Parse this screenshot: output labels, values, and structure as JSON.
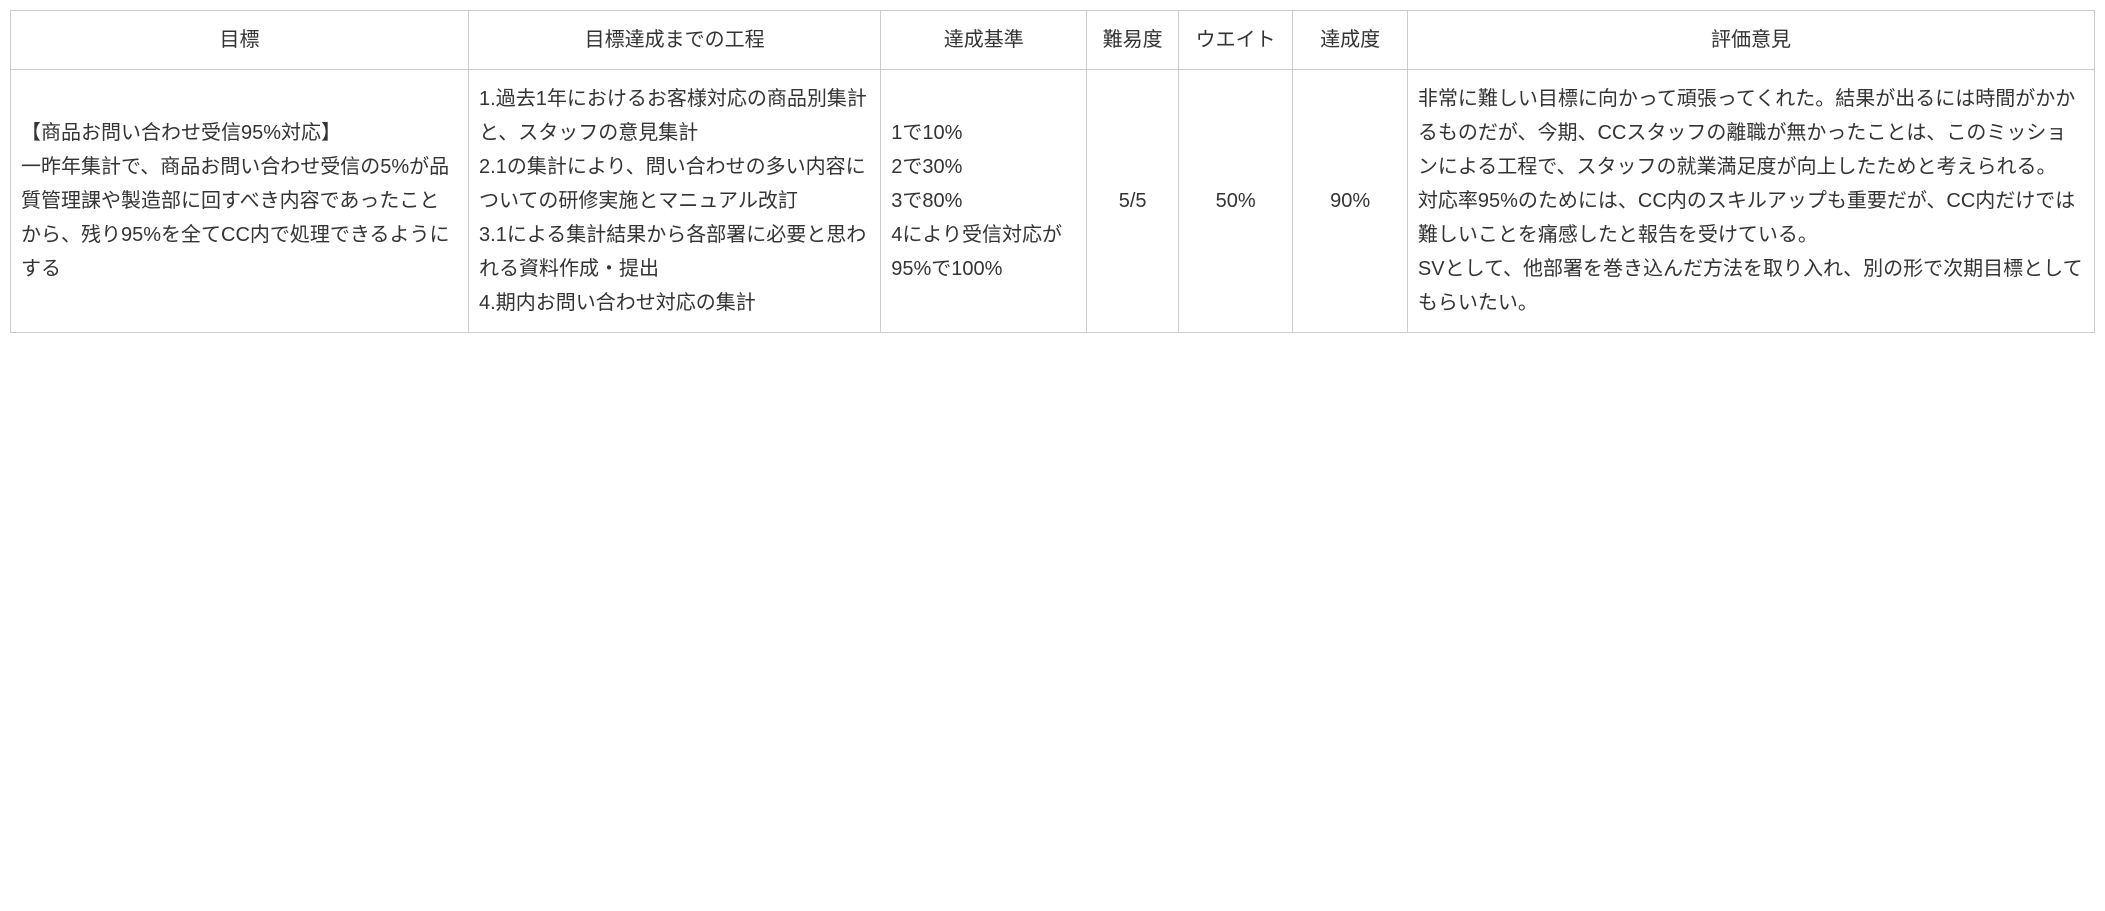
{
  "table": {
    "columns": [
      {
        "key": "goal",
        "label": "目標",
        "class": "col-goal"
      },
      {
        "key": "process",
        "label": "目標達成までの工程",
        "class": "col-process"
      },
      {
        "key": "criteria",
        "label": "達成基準",
        "class": "col-criteria"
      },
      {
        "key": "difficulty",
        "label": "難易度",
        "class": "col-difficulty"
      },
      {
        "key": "weight",
        "label": "ウエイト",
        "class": "col-weight"
      },
      {
        "key": "achievement",
        "label": "達成度",
        "class": "col-achievement"
      },
      {
        "key": "feedback",
        "label": "評価意見",
        "class": "col-feedback"
      }
    ],
    "row": {
      "goal": "【商品お問い合わせ受信95%対応】\n一昨年集計で、商品お問い合わせ受信の5%が品質管理課や製造部に回すべき内容であったことから、残り95%を全てCC内で処理できるようにする",
      "process": "1.過去1年におけるお客様対応の商品別集計と、スタッフの意見集計\n2.1の集計により、問い合わせの多い内容についての研修実施とマニュアル改訂\n3.1による集計結果から各部署に必要と思われる資料作成・提出\n4.期内お問い合わせ対応の集計",
      "criteria": "1で10%\n2で30%\n3で80%\n4により受信対応が95%で100%",
      "difficulty": "5/5",
      "weight": "50%",
      "achievement": "90%",
      "feedback": "非常に難しい目標に向かって頑張ってくれた。結果が出るには時間がかかるものだが、今期、CCスタッフの離職が無かったことは、このミッションによる工程で、スタッフの就業満足度が向上したためと考えられる。\n対応率95%のためには、CC内のスキルアップも重要だが、CC内だけでは難しいことを痛感したと報告を受けている。\nSVとして、他部署を巻き込んだ方法を取り入れ、別の形で次期目標としてもらいたい。"
    },
    "styling": {
      "border_color": "#cccccc",
      "text_color": "#333333",
      "background_color": "#ffffff",
      "font_size": 20,
      "line_height": 1.7,
      "column_widths_pct": [
        20,
        18,
        9,
        4,
        5,
        5,
        30
      ]
    }
  }
}
